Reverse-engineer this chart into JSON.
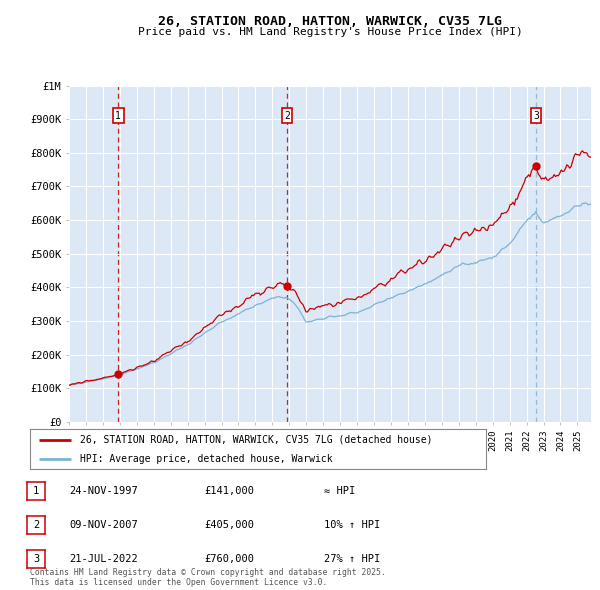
{
  "title_line1": "26, STATION ROAD, HATTON, WARWICK, CV35 7LG",
  "title_line2": "Price paid vs. HM Land Registry's House Price Index (HPI)",
  "background_color": "#dce8f5",
  "red_line_color": "#cc0000",
  "blue_line_color": "#7fb3d3",
  "marker_color": "#cc0000",
  "ylim": [
    0,
    1000000
  ],
  "xlim_start": 1995.0,
  "xlim_end": 2025.8,
  "sale_dates": [
    1997.9,
    2007.87,
    2022.55
  ],
  "sale_prices": [
    141000,
    405000,
    760000
  ],
  "sale_labels": [
    "1",
    "2",
    "3"
  ],
  "legend_line1": "26, STATION ROAD, HATTON, WARWICK, CV35 7LG (detached house)",
  "legend_line2": "HPI: Average price, detached house, Warwick",
  "table_rows": [
    [
      "1",
      "24-NOV-1997",
      "£141,000",
      "≈ HPI"
    ],
    [
      "2",
      "09-NOV-2007",
      "£405,000",
      "10% ↑ HPI"
    ],
    [
      "3",
      "21-JUL-2022",
      "£760,000",
      "27% ↑ HPI"
    ]
  ],
  "footnote": "Contains HM Land Registry data © Crown copyright and database right 2025.\nThis data is licensed under the Open Government Licence v3.0.",
  "ytick_labels": [
    "£0",
    "£100K",
    "£200K",
    "£300K",
    "£400K",
    "£500K",
    "£600K",
    "£700K",
    "£800K",
    "£900K",
    "£1M"
  ],
  "ytick_values": [
    0,
    100000,
    200000,
    300000,
    400000,
    500000,
    600000,
    700000,
    800000,
    900000,
    1000000
  ]
}
